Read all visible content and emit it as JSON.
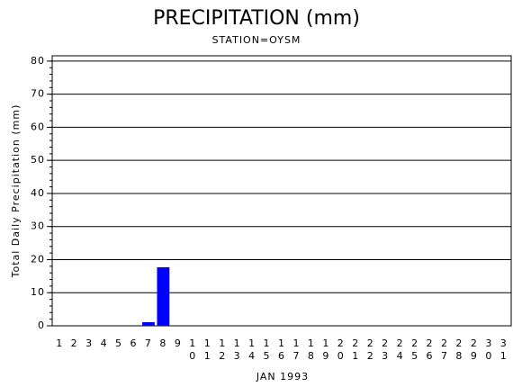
{
  "chart_data": {
    "type": "bar",
    "title": "PRECIPITATION (mm)",
    "subtitle": "STATION=OYSM",
    "y_label": "Total Daily Precipitation (mm)",
    "x_label": "JAN 1993",
    "categories": [
      "1",
      "2",
      "3",
      "4",
      "5",
      "6",
      "7",
      "8",
      "9",
      "10",
      "11",
      "12",
      "13",
      "14",
      "15",
      "16",
      "17",
      "18",
      "19",
      "20",
      "21",
      "22",
      "23",
      "24",
      "25",
      "26",
      "27",
      "28",
      "29",
      "30",
      "31"
    ],
    "values": [
      0,
      0,
      0,
      0,
      0,
      0,
      1.1,
      17.7,
      0,
      0,
      0,
      0,
      0,
      0,
      0,
      0,
      0,
      0,
      0,
      0,
      0,
      0,
      0,
      0,
      0,
      0,
      0,
      0,
      0,
      0,
      0
    ],
    "color": "#0000ff",
    "ylim": [
      0,
      81.6
    ],
    "yticks": [
      0,
      10,
      20,
      30,
      40,
      50,
      60,
      70,
      80
    ],
    "grid": true
  }
}
